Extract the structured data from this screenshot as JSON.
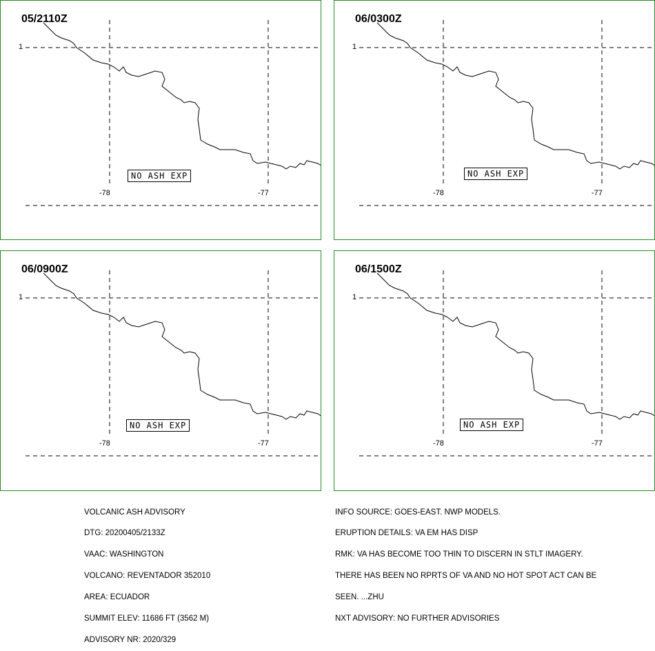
{
  "panels": [
    {
      "time": "05/2110Z",
      "status": "NO ASH EXP"
    },
    {
      "time": "06/0300Z",
      "status": "NO ASH EXP"
    },
    {
      "time": "06/0900Z",
      "status": "NO ASH EXP"
    },
    {
      "time": "06/1500Z",
      "status": "NO ASH EXP"
    }
  ],
  "grid": {
    "lat_label": "1",
    "lon_labels": [
      "-78",
      "-77"
    ]
  },
  "advisory_left": [
    "VOLCANIC ASH ADVISORY",
    "DTG: 20200405/2133Z",
    "VAAC: WASHINGTON",
    "VOLCANO: REVENTADOR 352010",
    "AREA: ECUADOR",
    "SUMMIT ELEV: 11686 FT (3562 M)",
    "ADVISORY NR: 2020/329"
  ],
  "advisory_right": [
    "INFO SOURCE: GOES-EAST. NWP MODELS.",
    "ERUPTION DETAILS: VA EM HAS DISP",
    "RMK: VA HAS BECOME TOO THIN TO DISCERN IN STLT IMAGERY.",
    "THERE HAS BEEN NO RPRTS OF VA AND NO HOT SPOT ACT CAN BE",
    "SEEN. ...ZHU",
    "NXT ADVISORY: NO FURTHER ADVISORIES"
  ],
  "colors": {
    "panel_border": "#228b22",
    "lines": "#000000"
  }
}
